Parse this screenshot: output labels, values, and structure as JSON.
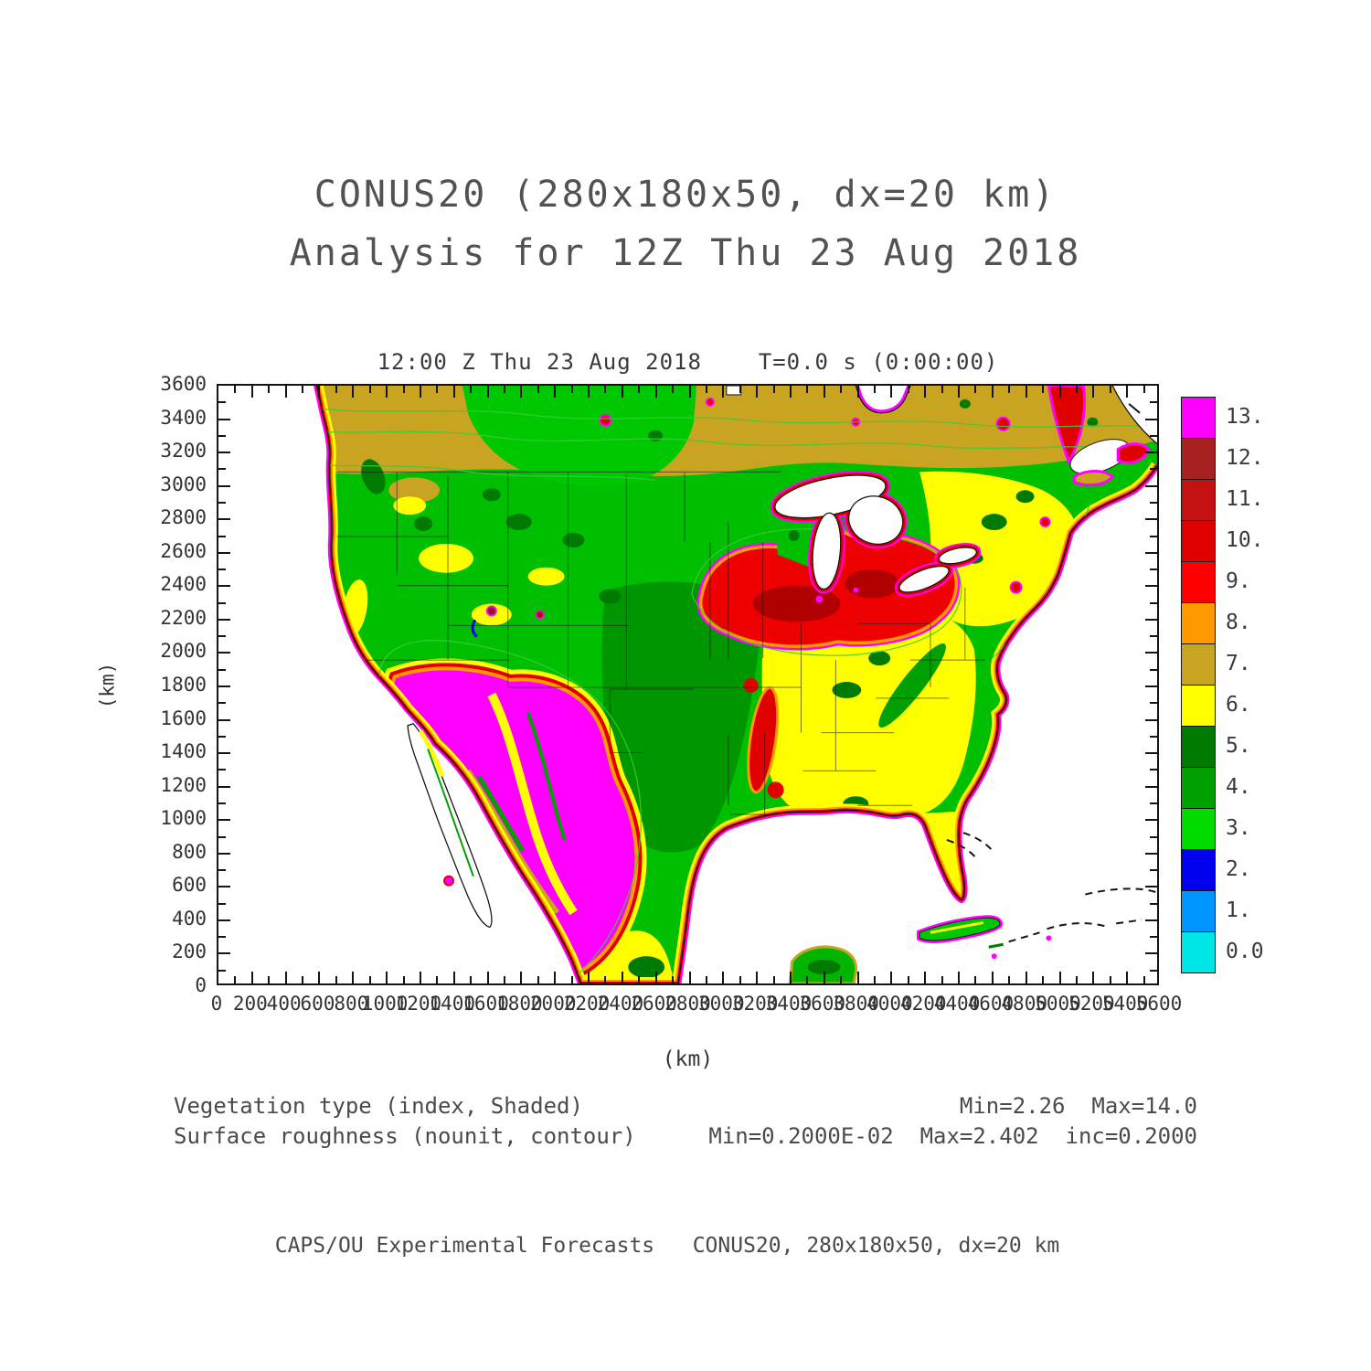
{
  "page": {
    "title_line1": "CONUS20 (280x180x50, dx=20 km)",
    "title_line2": "Analysis for 12Z Thu 23 Aug 2018",
    "footer": "CAPS/OU Experimental Forecasts   CONUS20, 280x180x50, dx=20 km"
  },
  "plot": {
    "header": "12:00 Z Thu 23 Aug 2018    T=0.0 s (0:00:00)",
    "xlabel": "(km)",
    "ylabel": "(km)"
  },
  "legend": {
    "shaded_label": "Vegetation type (index, Shaded)",
    "shaded_stats": "Min=2.26  Max=14.0",
    "contour_label": "Surface roughness (nounit, contour)",
    "contour_stats": "Min=0.2000E-02  Max=2.402  inc=0.2000"
  },
  "chart_data": {
    "type": "heatmap",
    "subtype": "filled-contour map with line contours overlaid",
    "title": "12:00 Z Thu 23 Aug 2018    T=0.0 s (0:00:00)",
    "xlabel": "(km)",
    "ylabel": "(km)",
    "xlim": [
      0,
      5600
    ],
    "ylim": [
      0,
      3600
    ],
    "x_ticks": [
      0,
      200,
      400,
      600,
      800,
      1000,
      1200,
      1400,
      1600,
      1800,
      2000,
      2200,
      2400,
      2600,
      2800,
      3000,
      3200,
      3400,
      3600,
      3800,
      4000,
      4200,
      4400,
      4600,
      4800,
      5000,
      5200,
      5400,
      5600
    ],
    "y_ticks": [
      0,
      200,
      400,
      600,
      800,
      1000,
      1200,
      1400,
      1600,
      1800,
      2000,
      2200,
      2400,
      2600,
      2800,
      3000,
      3200,
      3400,
      3600
    ],
    "shaded_field": {
      "name": "Vegetation type (index)",
      "min": 2.26,
      "max": 14.0
    },
    "contour_field": {
      "name": "Surface roughness (nounit)",
      "min": 0.002,
      "max": 2.402,
      "interval": 0.2
    },
    "map_description": "Continental United States with southern Canada, Mexico, Gulf of Mexico and Caribbean; vegetation index shaded by color, surface roughness as thin green contours, coastlines and state borders in black",
    "colorbar": {
      "levels": [
        0,
        1,
        2,
        3,
        4,
        5,
        6,
        7,
        8,
        9,
        10,
        11,
        12,
        13,
        14
      ],
      "cell_labels_top_to_bottom": [
        "13.",
        "12.",
        "11.",
        "10.",
        "9.",
        "8.",
        "7.",
        "6.",
        "5.",
        "4.",
        "3.",
        "2.",
        "1.",
        "0.0"
      ],
      "colors_top_to_bottom": [
        "#FF00FF",
        "#A82020",
        "#C41212",
        "#E00000",
        "#FF0000",
        "#FF9900",
        "#C8A420",
        "#FFFF00",
        "#007A00",
        "#00A000",
        "#00DC00",
        "#0000EE",
        "#0096FF",
        "#00E6E6"
      ]
    },
    "key_colors": {
      "ocean": "#FFFFFF",
      "canada_band": "#C8A420",
      "west_green": "#00BE00",
      "plains_dark_green": "#009600",
      "east_yellow": "#FFFF00",
      "midwest_red": "#EE0000",
      "southwest_magenta": "#FF00FF",
      "contour_line_green": "#3ACC3A"
    }
  }
}
